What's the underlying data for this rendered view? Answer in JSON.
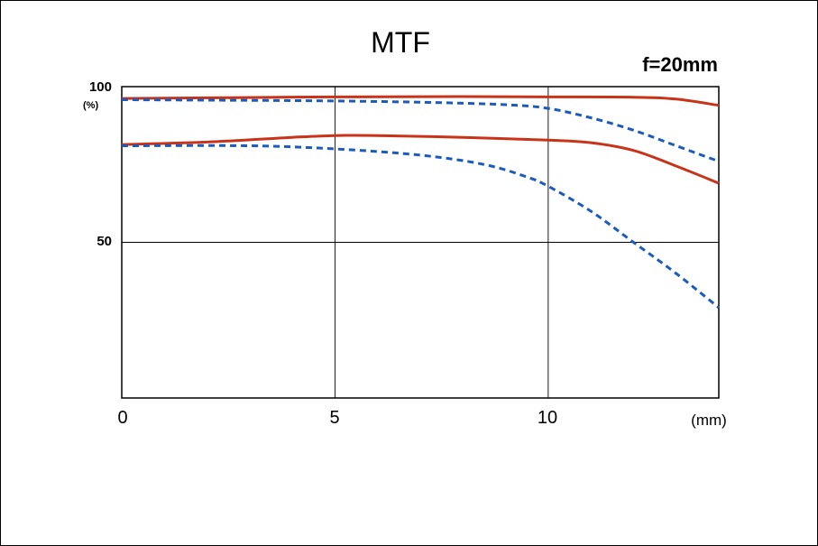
{
  "chart_data": {
    "type": "line",
    "title": "MTF",
    "subtitle": "f=20mm",
    "ylabel": "(%)",
    "xlabel": "(mm)",
    "xlim": [
      0,
      14
    ],
    "ylim": [
      0,
      100
    ],
    "x_ticks": [
      "0",
      "5",
      "10"
    ],
    "x_tick_values": [
      0,
      5,
      10
    ],
    "y_ticks": [
      "100",
      "50"
    ],
    "y_tick_values": [
      100,
      50
    ],
    "grid": true,
    "colors": {
      "solid": "#c8341a",
      "dashed": "#1a5bbf"
    },
    "series": [
      {
        "style": "solid",
        "color": "#c8341a",
        "x": [
          0,
          2,
          5,
          8,
          10,
          12,
          13,
          14
        ],
        "y": [
          96.2,
          96.4,
          96.7,
          96.8,
          96.7,
          96.6,
          96.0,
          94.0
        ]
      },
      {
        "style": "dashed",
        "color": "#1a5bbf",
        "x": [
          0,
          3,
          5,
          7,
          9,
          10,
          11,
          12,
          13,
          14
        ],
        "y": [
          95.8,
          95.6,
          95.4,
          95.0,
          94.2,
          93.0,
          90.0,
          86.0,
          81.0,
          76.0
        ]
      },
      {
        "style": "solid",
        "color": "#c8341a",
        "x": [
          0,
          2,
          4,
          5,
          6,
          8,
          10,
          11,
          12,
          13,
          14
        ],
        "y": [
          81.4,
          82.2,
          83.7,
          84.3,
          84.3,
          83.7,
          82.8,
          82.0,
          79.5,
          74.5,
          69.0
        ]
      },
      {
        "style": "dashed",
        "color": "#1a5bbf",
        "x": [
          0,
          3,
          5,
          7,
          8.5,
          9.5,
          10,
          11,
          12,
          13,
          14
        ],
        "y": [
          81.0,
          81.0,
          80.0,
          78.0,
          75.0,
          71.0,
          68.0,
          60.0,
          50.0,
          40.0,
          29.0
        ]
      }
    ]
  }
}
